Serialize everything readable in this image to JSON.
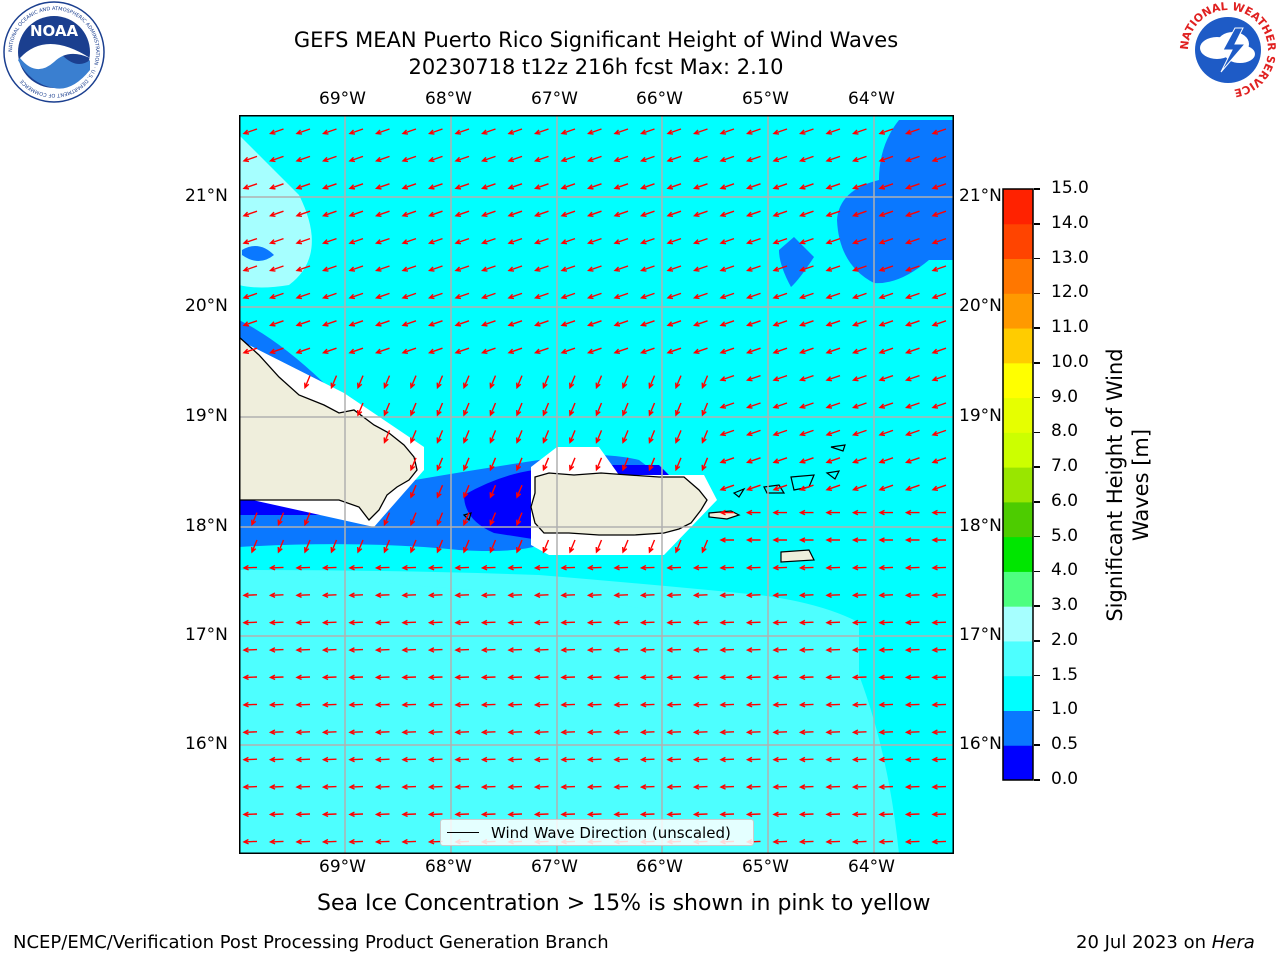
{
  "title": {
    "line1": "GEFS MEAN Puerto Rico Significant Height of Wind Waves",
    "line2": "20230718 t12z 216h fcst   Max: 2.10"
  },
  "logos": {
    "left_icon": "noaa-logo",
    "left_text": "NOAA",
    "left_ring_text": "NATIONAL OCEANIC AND ATMOSPHERIC ADMINISTRATION · U.S. DEPARTMENT OF COMMERCE",
    "right_icon": "nws-logo",
    "right_ring_text": "NATIONAL WEATHER SERVICE"
  },
  "map": {
    "lon_labels": [
      "69°W",
      "68°W",
      "67°W",
      "66°W",
      "65°W",
      "64°W"
    ],
    "lat_labels": [
      "21°N",
      "20°N",
      "19°N",
      "18°N",
      "17°N",
      "16°N"
    ],
    "legend_label": "Wind Wave Direction (unscaled)",
    "arrow_color": "#ff0000",
    "land_color": "#efeedc"
  },
  "colorbar": {
    "title": "Significant Height of Wind Waves [m]",
    "ticks": [
      "0.0",
      "0.5",
      "1.0",
      "1.5",
      "2.0",
      "3.0",
      "4.0",
      "5.0",
      "6.0",
      "7.0",
      "8.0",
      "9.0",
      "10.0",
      "11.0",
      "12.0",
      "13.0",
      "14.0",
      "15.0"
    ],
    "colors": [
      "#0000ff",
      "#0a78ff",
      "#00ffff",
      "#4dffff",
      "#a6ffff",
      "#4dff80",
      "#00e600",
      "#4dcc00",
      "#99e600",
      "#ccff00",
      "#e6ff00",
      "#ffff00",
      "#ffcc00",
      "#ff9900",
      "#ff7700",
      "#ff4400",
      "#ff2200",
      "#ff0000"
    ]
  },
  "footer": {
    "sea_ice_note": "Sea Ice Concentration > 15% is shown in pink to yellow",
    "left": "NCEP/EMC/Verification Post Processing Product Generation Branch",
    "right_prefix": "20 Jul 2023 on ",
    "right_emph": "Hera"
  }
}
